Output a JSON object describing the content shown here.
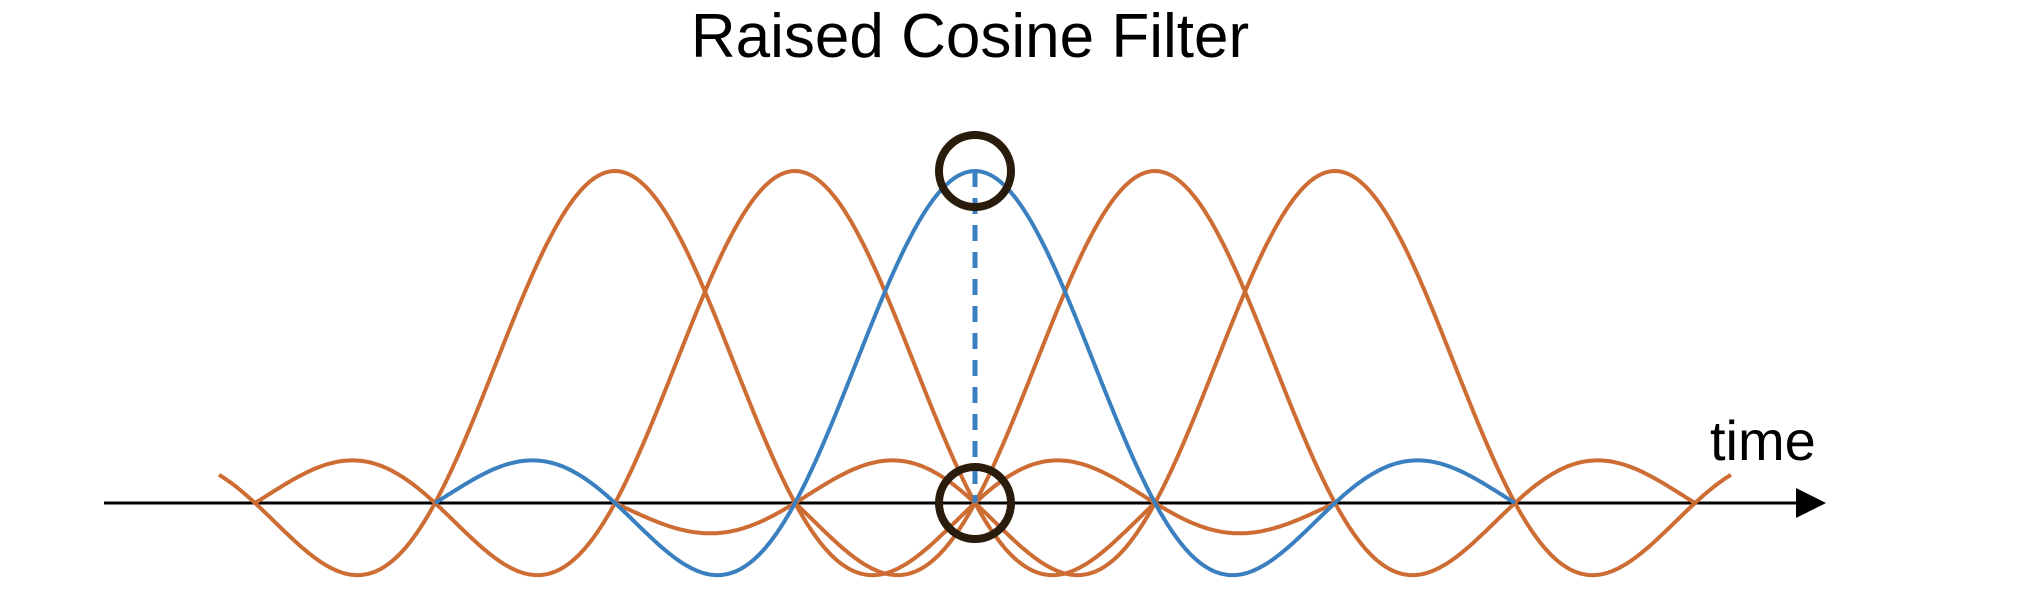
{
  "title": "Raised Cosine Filter",
  "axis_label": "time",
  "colors": {
    "main_pulse": "#3a7fc0",
    "neighbor_pulses": "#cd6d34",
    "axis": "#000000",
    "sample_markers": "#2a1c0c"
  },
  "chart_data": {
    "type": "line",
    "title": "Raised Cosine Filter",
    "xlabel": "time",
    "ylabel": "",
    "xlim": [
      -5.5,
      5.5
    ],
    "ylim": [
      -0.25,
      1.0
    ],
    "grid": false,
    "pulse_shape": "sinc (rolloff approximately 0)",
    "sample_times": [
      -4,
      -3,
      -2,
      -1,
      0,
      1,
      2,
      3,
      4
    ],
    "main_pulse": {
      "center": 0,
      "peak": 1,
      "x_range": [
        -3,
        3
      ]
    },
    "neighbor_pulses": [
      {
        "center": -2,
        "x_range": [
          -4.2,
          2
        ]
      },
      {
        "center": -1,
        "x_range": [
          -4,
          1
        ]
      },
      {
        "center": 1,
        "x_range": [
          -1,
          4
        ]
      },
      {
        "center": 2,
        "x_range": [
          -2,
          4.2
        ]
      }
    ],
    "markers": [
      {
        "x": 0,
        "y": 1,
        "meaning": "peak sample"
      },
      {
        "x": 0,
        "y": 0,
        "meaning": "zero crossing of neighbors"
      }
    ]
  }
}
